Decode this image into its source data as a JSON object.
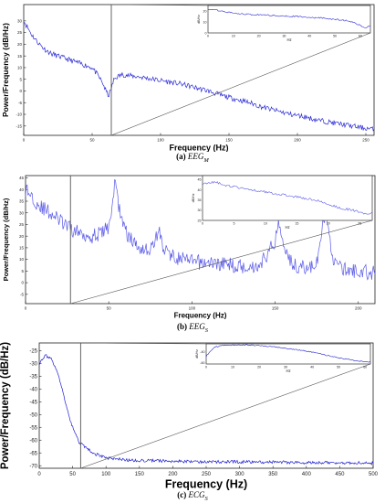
{
  "chart_data": [
    {
      "type": "line",
      "caption_label": "(a)",
      "caption_text": "EEG",
      "caption_sub": "M",
      "xlabel": "Frequency (Hz)",
      "ylabel": "Power/Frequency (dB/Hz)",
      "xlim": [
        0,
        256
      ],
      "ylim": [
        -19,
        37
      ],
      "xticks": [
        0,
        50,
        100,
        150,
        200,
        250
      ],
      "yticks": [
        -15,
        -10,
        -5,
        0,
        5,
        10,
        15,
        20,
        25,
        30
      ],
      "zoom_x": 64,
      "grid": false,
      "color": "#2b2bd6",
      "series": [
        {
          "x": [
            0,
            3,
            6,
            10,
            15,
            20,
            25,
            30,
            35,
            40,
            45,
            50,
            55,
            58,
            60,
            62,
            64,
            66,
            68,
            72,
            78,
            85,
            95,
            105,
            115,
            125,
            135,
            145,
            155,
            165,
            175,
            185,
            195,
            205,
            215,
            225,
            235,
            245,
            256
          ],
          "y": [
            30,
            27,
            24,
            21,
            18,
            16,
            15,
            14,
            13,
            12,
            11,
            10,
            6,
            3,
            0,
            -2,
            1,
            5,
            6,
            7,
            6.5,
            6,
            5,
            4,
            3,
            1.5,
            0,
            -2,
            -3.5,
            -5,
            -7,
            -8.5,
            -10,
            -11,
            -12.5,
            -13.5,
            -14.5,
            -15.5,
            -16.5
          ]
        }
      ],
      "inset": {
        "xlabel": "Hz",
        "ylabel": "dB/Hz",
        "xlim": [
          0,
          64
        ],
        "ylim": [
          0,
          25
        ],
        "xticks": [
          0,
          10,
          20,
          30,
          40,
          50,
          60
        ],
        "yticks": [
          0,
          10,
          20
        ],
        "x": [
          0,
          5,
          10,
          15,
          20,
          25,
          30,
          35,
          40,
          45,
          50,
          55,
          58,
          60,
          62,
          64
        ],
        "y": [
          22,
          20,
          18,
          17,
          16.5,
          16,
          15.5,
          15,
          14,
          13.5,
          12.5,
          11,
          9,
          7,
          5,
          6
        ]
      }
    },
    {
      "type": "line",
      "caption_label": "(b)",
      "caption_text": "EEG",
      "caption_sub": "S",
      "xlabel": "Frequency (Hz)",
      "ylabel": "Power/Frequency (dB/Hz)",
      "xlim": [
        0,
        210
      ],
      "ylim": [
        -9,
        46
      ],
      "xticks": [
        0,
        50,
        100,
        150,
        200
      ],
      "yticks": [
        -5,
        0,
        5,
        10,
        15,
        20,
        25,
        30,
        35,
        40,
        45
      ],
      "zoom_x": 27,
      "grid": false,
      "color": "#5a5ae8",
      "series": [
        {
          "x": [
            0,
            3,
            6,
            10,
            15,
            20,
            25,
            30,
            35,
            40,
            45,
            50,
            52,
            54,
            56,
            60,
            65,
            70,
            75,
            78,
            80,
            82,
            85,
            90,
            95,
            100,
            110,
            120,
            130,
            140,
            145,
            150,
            152,
            155,
            160,
            165,
            170,
            175,
            180,
            185,
            190,
            195,
            200,
            210
          ],
          "y": [
            40,
            38,
            35,
            32,
            30,
            27,
            24,
            22,
            21,
            20,
            21,
            24,
            33,
            44,
            33,
            22,
            17,
            15,
            14,
            18,
            24,
            16,
            13,
            11,
            10,
            9,
            8.5,
            8,
            7,
            7,
            12,
            18,
            26,
            18,
            8,
            7,
            6,
            8,
            30,
            10,
            6,
            5,
            5,
            4
          ]
        }
      ],
      "inset": {
        "xlabel": "Hz",
        "ylabel": "dB/Hz",
        "xlim": [
          0,
          27
        ],
        "ylim": [
          25,
          47
        ],
        "xticks": [
          0,
          5,
          10,
          15,
          20,
          25
        ],
        "yticks": [
          25,
          30,
          35,
          40,
          45
        ],
        "x": [
          0,
          2,
          4,
          6,
          8,
          10,
          12,
          14,
          16,
          18,
          20,
          22,
          24,
          26,
          27
        ],
        "y": [
          43,
          44,
          42,
          41,
          40,
          39,
          38,
          37,
          36,
          35,
          33,
          31,
          30,
          28,
          29
        ]
      }
    },
    {
      "type": "line",
      "caption_label": "(c)",
      "caption_text": "ECG",
      "caption_sub": "S",
      "xlabel": "Frequency (Hz)",
      "ylabel": "Power/Frequency (dB/Hz)",
      "xlim": [
        0,
        500
      ],
      "ylim": [
        -71,
        -22
      ],
      "xticks": [
        0,
        50,
        100,
        150,
        200,
        250,
        300,
        350,
        400,
        450,
        500
      ],
      "yticks": [
        -70,
        -65,
        -60,
        -55,
        -50,
        -45,
        -40,
        -35,
        -30,
        -25
      ],
      "zoom_x": 62,
      "grid": false,
      "color": "#1f1fd0",
      "series": [
        {
          "x": [
            0,
            5,
            10,
            15,
            20,
            25,
            30,
            35,
            40,
            45,
            50,
            55,
            60,
            70,
            80,
            90,
            100,
            120,
            140,
            160,
            200,
            250,
            300,
            350,
            400,
            450,
            500
          ],
          "y": [
            -30,
            -28,
            -27,
            -27.5,
            -29,
            -32,
            -36,
            -41,
            -46,
            -51,
            -55,
            -58,
            -61,
            -63,
            -65,
            -66,
            -67,
            -67.5,
            -68,
            -68,
            -68.2,
            -68.5,
            -68.5,
            -68.6,
            -68.8,
            -68.8,
            -69
          ]
        }
      ],
      "inset": {
        "xlabel": "Hz",
        "ylabel": "dB/Hz",
        "xlim": [
          0,
          62
        ],
        "ylim": [
          -62,
          -26
        ],
        "xticks": [
          0,
          10,
          20,
          30,
          40,
          50,
          60
        ],
        "yticks": [
          -60,
          -40
        ],
        "x": [
          0,
          3,
          6,
          10,
          15,
          20,
          25,
          30,
          35,
          40,
          45,
          50,
          55,
          60,
          62
        ],
        "y": [
          -48,
          -32,
          -29,
          -28,
          -28,
          -29,
          -31,
          -34,
          -37,
          -41,
          -46,
          -51,
          -55,
          -58,
          -59
        ]
      }
    }
  ]
}
